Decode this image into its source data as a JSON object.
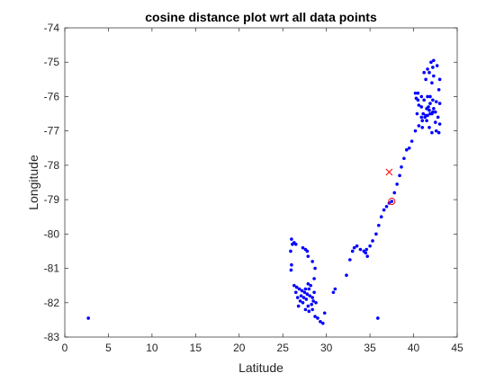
{
  "chart_data": {
    "type": "scatter",
    "title": "cosine distance plot wrt all data points",
    "xlabel": "Latitude",
    "ylabel": "Longitude",
    "xlim": [
      0,
      45
    ],
    "ylim": [
      -83,
      -74
    ],
    "xticks": [
      0,
      5,
      10,
      15,
      20,
      25,
      30,
      35,
      40,
      45
    ],
    "yticks": [
      -74,
      -75,
      -76,
      -77,
      -78,
      -79,
      -80,
      -81,
      -82,
      -83
    ],
    "grid": false,
    "legend": "none",
    "colors": {
      "points": "#0000ff",
      "query": "#ff0000",
      "nearest": "#ff0000"
    },
    "series": [
      {
        "marker": "dot",
        "color": "#0000ff",
        "points": [
          [
            2.7,
            -82.45
          ],
          [
            35.9,
            -82.45
          ],
          [
            29.6,
            -82.6
          ],
          [
            29.3,
            -82.55
          ],
          [
            29.0,
            -82.45
          ],
          [
            28.7,
            -82.4
          ],
          [
            29.8,
            -82.3
          ],
          [
            28.4,
            -82.2
          ],
          [
            28.0,
            -82.25
          ],
          [
            27.6,
            -82.2
          ],
          [
            27.9,
            -82.1
          ],
          [
            27.3,
            -82.0
          ],
          [
            27.0,
            -81.95
          ],
          [
            26.7,
            -81.85
          ],
          [
            26.5,
            -81.7
          ],
          [
            26.3,
            -81.5
          ],
          [
            26.6,
            -81.55
          ],
          [
            26.9,
            -81.6
          ],
          [
            27.2,
            -81.65
          ],
          [
            27.5,
            -81.7
          ],
          [
            27.8,
            -81.75
          ],
          [
            28.1,
            -81.8
          ],
          [
            28.4,
            -81.85
          ],
          [
            28.6,
            -81.7
          ],
          [
            28.2,
            -81.5
          ],
          [
            27.9,
            -81.45
          ],
          [
            27.6,
            -81.6
          ],
          [
            28.5,
            -81.95
          ],
          [
            28.8,
            -82.0
          ],
          [
            28.3,
            -82.05
          ],
          [
            27.7,
            -81.9
          ],
          [
            27.1,
            -81.8
          ],
          [
            26.8,
            -82.1
          ],
          [
            27.4,
            -81.85
          ],
          [
            28.0,
            -81.6
          ],
          [
            28.6,
            -81.3
          ],
          [
            28.7,
            -81.0
          ],
          [
            28.4,
            -80.8
          ],
          [
            26.0,
            -80.15
          ],
          [
            26.1,
            -80.3
          ],
          [
            26.3,
            -80.25
          ],
          [
            26.5,
            -80.3
          ],
          [
            25.9,
            -80.5
          ],
          [
            26.0,
            -80.9
          ],
          [
            25.95,
            -81.05
          ],
          [
            27.3,
            -80.4
          ],
          [
            27.6,
            -80.45
          ],
          [
            27.8,
            -80.5
          ],
          [
            27.9,
            -80.65
          ],
          [
            30.8,
            -81.7
          ],
          [
            31.0,
            -81.6
          ],
          [
            32.3,
            -81.2
          ],
          [
            32.7,
            -80.75
          ],
          [
            33.0,
            -80.5
          ],
          [
            33.2,
            -80.4
          ],
          [
            33.5,
            -80.35
          ],
          [
            33.9,
            -80.45
          ],
          [
            34.3,
            -80.5
          ],
          [
            34.5,
            -80.55
          ],
          [
            34.7,
            -80.65
          ],
          [
            34.6,
            -80.45
          ],
          [
            35.0,
            -80.35
          ],
          [
            35.3,
            -80.2
          ],
          [
            35.7,
            -80.0
          ],
          [
            36.0,
            -79.75
          ],
          [
            36.3,
            -79.5
          ],
          [
            36.6,
            -79.3
          ],
          [
            36.9,
            -79.2
          ],
          [
            37.2,
            -79.1
          ],
          [
            37.5,
            -79.05
          ],
          [
            37.8,
            -78.8
          ],
          [
            38.1,
            -78.55
          ],
          [
            38.4,
            -78.3
          ],
          [
            38.6,
            -78.05
          ],
          [
            38.9,
            -77.8
          ],
          [
            39.2,
            -77.55
          ],
          [
            39.5,
            -77.5
          ],
          [
            39.8,
            -77.3
          ],
          [
            40.2,
            -77.0
          ],
          [
            40.6,
            -76.85
          ],
          [
            41.0,
            -76.7
          ],
          [
            41.3,
            -76.6
          ],
          [
            41.6,
            -76.55
          ],
          [
            41.9,
            -76.5
          ],
          [
            42.2,
            -76.45
          ],
          [
            42.5,
            -76.45
          ],
          [
            42.8,
            -76.6
          ],
          [
            43.0,
            -76.8
          ],
          [
            42.9,
            -77.05
          ],
          [
            42.6,
            -77.0
          ],
          [
            42.5,
            -76.75
          ],
          [
            42.2,
            -76.1
          ],
          [
            41.9,
            -76.2
          ],
          [
            41.7,
            -76.3
          ],
          [
            41.5,
            -76.35
          ],
          [
            41.8,
            -76.4
          ],
          [
            41.6,
            -76.0
          ],
          [
            41.9,
            -76.0
          ],
          [
            42.3,
            -76.35
          ],
          [
            42.1,
            -76.5
          ],
          [
            41.4,
            -76.55
          ],
          [
            41.2,
            -76.1
          ],
          [
            40.9,
            -76.3
          ],
          [
            40.5,
            -76.1
          ],
          [
            40.2,
            -75.9
          ],
          [
            40.5,
            -75.9
          ],
          [
            40.3,
            -76.05
          ],
          [
            40.4,
            -76.5
          ],
          [
            40.6,
            -76.25
          ],
          [
            40.9,
            -76.6
          ],
          [
            41.1,
            -76.5
          ],
          [
            42.1,
            -75.6
          ],
          [
            42.3,
            -75.4
          ],
          [
            42.2,
            -75.15
          ],
          [
            42.0,
            -75.0
          ],
          [
            42.3,
            -74.95
          ],
          [
            42.7,
            -75.1
          ],
          [
            43.0,
            -75.5
          ],
          [
            42.9,
            -75.8
          ],
          [
            42.6,
            -76.15
          ],
          [
            41.6,
            -75.2
          ],
          [
            41.4,
            -75.5
          ],
          [
            41.8,
            -75.3
          ],
          [
            41.2,
            -75.3
          ],
          [
            40.9,
            -76.0
          ],
          [
            41.5,
            -76.7
          ],
          [
            41.0,
            -76.9
          ],
          [
            41.8,
            -76.9
          ],
          [
            42.1,
            -77.05
          ],
          [
            43.0,
            -76.2
          ]
        ]
      }
    ],
    "query_point": {
      "x": 37.2,
      "y": -78.2,
      "marker": "x",
      "color": "#ff0000"
    },
    "nearest_point": {
      "x": 37.5,
      "y": -79.05,
      "marker": "circle",
      "color": "#ff0000"
    }
  }
}
